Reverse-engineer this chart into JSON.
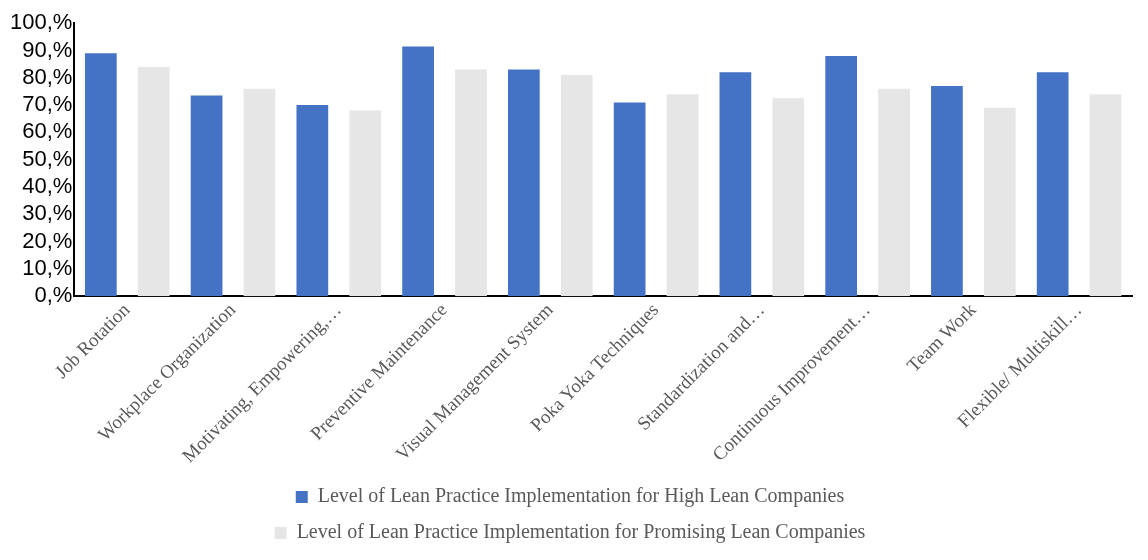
{
  "chart_data": {
    "type": "bar",
    "categories": [
      "Job Rotation",
      "Workplace Organization",
      "Motivating, Empowering,…",
      "Preventive Maintenance",
      "Visual Management System",
      "Poka Yoka Techniques",
      "Standardization and…",
      "Continuous Improvement…",
      "Team Work",
      "Flexible/ Multiskill…"
    ],
    "series": [
      {
        "name": "Level of Lean Practice Implementation for High Lean Companies",
        "color": "#4472c4",
        "values": [
          89,
          73.5,
          70,
          91.5,
          83,
          71,
          82,
          88,
          77,
          82
        ]
      },
      {
        "name": "Level of Lean Practice Implementation for Promising Lean Companies",
        "color": "#e7e6e6",
        "values": [
          84,
          76,
          68,
          83,
          81,
          74,
          72.5,
          76,
          69,
          74
        ]
      }
    ],
    "ylim": [
      0,
      100
    ],
    "yticks": [
      {
        "value": 0,
        "label": "0,%"
      },
      {
        "value": 10,
        "label": "10,%"
      },
      {
        "value": 20,
        "label": "20,%"
      },
      {
        "value": 30,
        "label": "30,%"
      },
      {
        "value": 40,
        "label": "40,%"
      },
      {
        "value": 50,
        "label": "50,%"
      },
      {
        "value": 60,
        "label": "60,%"
      },
      {
        "value": 70,
        "label": "70,%"
      },
      {
        "value": 80,
        "label": "80,%"
      },
      {
        "value": 90,
        "label": "90,%"
      },
      {
        "value": 100,
        "label": "100,%"
      }
    ],
    "grid": false,
    "legend": "bottom"
  }
}
